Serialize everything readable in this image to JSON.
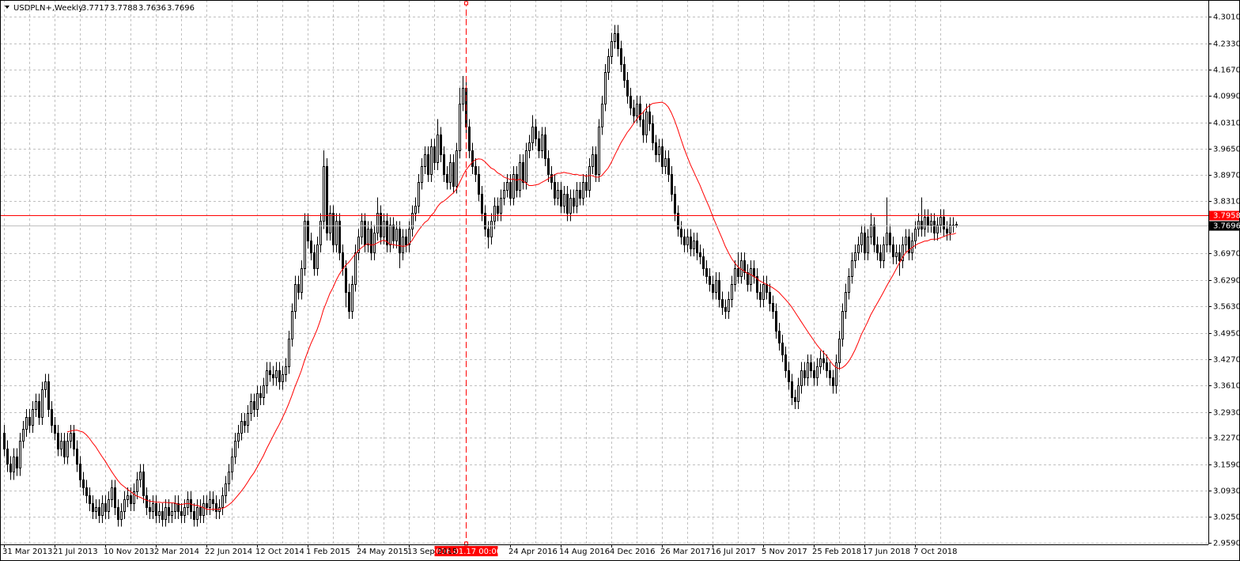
{
  "chart_data": {
    "type": "candlestick",
    "title": "USDPLN+,Weekly",
    "categories": [
      "31 Mar 2013",
      null,
      null,
      null,
      null,
      null,
      null,
      null,
      null,
      null,
      null,
      null,
      null,
      null,
      null,
      null,
      "21 Jul 2013",
      null,
      null,
      null,
      null,
      null,
      null,
      null,
      null,
      null,
      null,
      null,
      null,
      null,
      null,
      null,
      "10 Nov 2013",
      null,
      null,
      null,
      null,
      null,
      null,
      null,
      null,
      null,
      null,
      null,
      null,
      null,
      null,
      null,
      "2 Mar 2014",
      null,
      null,
      null,
      null,
      null,
      null,
      null,
      null,
      null,
      null,
      null,
      null,
      null,
      null,
      null,
      "22 Jun 2014",
      null,
      null,
      null,
      null,
      null,
      null,
      null,
      null,
      null,
      null,
      null,
      null,
      null,
      null,
      null,
      "12 Oct 2014",
      null,
      null,
      null,
      null,
      null,
      null,
      null,
      null,
      null,
      null,
      null,
      null,
      null,
      null,
      null,
      "1 Feb 2015",
      null,
      null,
      null,
      null,
      null,
      null,
      null,
      null,
      null,
      null,
      null,
      null,
      null,
      null,
      null,
      "24 May 2015",
      null,
      null,
      null,
      null,
      null,
      null,
      null,
      null,
      null,
      null,
      null,
      null,
      null,
      null,
      null,
      "13 Sep 2015",
      null,
      null,
      null,
      null,
      null,
      null,
      null,
      null,
      null,
      null,
      null,
      null,
      null,
      null,
      null,
      null,
      null,
      "2016.01.17 00:00",
      null,
      null,
      null,
      null,
      null,
      null,
      null,
      null,
      null,
      null,
      null,
      null,
      null,
      "24 Apr 2016",
      null,
      null,
      null,
      null,
      null,
      null,
      null,
      null,
      null,
      null,
      null,
      null,
      null,
      null,
      null,
      "14 Aug 2016",
      null,
      null,
      null,
      null,
      null,
      null,
      null,
      null,
      null,
      null,
      null,
      null,
      null,
      null,
      null,
      "4 Dec 2016",
      null,
      null,
      null,
      null,
      null,
      null,
      null,
      null,
      null,
      null,
      null,
      null,
      null,
      null,
      null,
      "26 Mar 2017",
      null,
      null,
      null,
      null,
      null,
      null,
      null,
      null,
      null,
      null,
      null,
      null,
      null,
      null,
      null,
      "16 Jul 2017",
      null,
      null,
      null,
      null,
      null,
      null,
      null,
      null,
      null,
      null,
      null,
      null,
      null,
      null,
      null,
      "5 Nov 2017",
      null,
      null,
      null,
      null,
      null,
      null,
      null,
      null,
      null,
      null,
      null,
      null,
      null,
      null,
      null,
      "25 Feb 2018",
      null,
      null,
      null,
      null,
      null,
      null,
      null,
      null,
      null,
      null,
      null,
      null,
      null,
      null,
      null,
      "17 Jun 2018",
      null,
      null,
      null,
      null,
      null,
      null,
      null,
      null,
      null,
      null,
      null,
      null,
      null,
      null,
      null,
      "7 Oct 2018",
      null,
      null,
      null,
      null,
      null,
      null,
      null,
      null,
      null,
      null,
      null,
      null,
      null
    ],
    "crosshair": "2016.01.17 00:00",
    "open": [
      3.24,
      3.2,
      3.16,
      3.14,
      3.18,
      3.15,
      3.22,
      3.25,
      3.28,
      3.26,
      3.3,
      3.32,
      3.28,
      3.35,
      3.37,
      3.3,
      3.26,
      3.24,
      3.2,
      3.22,
      3.18,
      3.22,
      3.24,
      3.2,
      3.16,
      3.12,
      3.1,
      3.08,
      3.06,
      3.04,
      3.05,
      3.03,
      3.06,
      3.04,
      3.07,
      3.1,
      3.05,
      3.02,
      3.04,
      3.07,
      3.08,
      3.06,
      3.09,
      3.12,
      3.14,
      3.08,
      3.05,
      3.04,
      3.06,
      3.03,
      3.04,
      3.02,
      3.05,
      3.03,
      3.04,
      3.06,
      3.04,
      3.03,
      3.05,
      3.07,
      3.04,
      3.02,
      3.05,
      3.03,
      3.06,
      3.05,
      3.07,
      3.06,
      3.04,
      3.05,
      3.08,
      3.11,
      3.14,
      3.18,
      3.22,
      3.24,
      3.27,
      3.26,
      3.29,
      3.32,
      3.3,
      3.34,
      3.33,
      3.36,
      3.4,
      3.39,
      3.38,
      3.4,
      3.37,
      3.39,
      3.41,
      3.48,
      3.55,
      3.62,
      3.6,
      3.66,
      3.78,
      3.73,
      3.7,
      3.66,
      3.72,
      3.78,
      3.92,
      3.75,
      3.8,
      3.72,
      3.78,
      3.7,
      3.66,
      3.6,
      3.55,
      3.62,
      3.7,
      3.74,
      3.78,
      3.72,
      3.76,
      3.7,
      3.75,
      3.8,
      3.74,
      3.78,
      3.72,
      3.77,
      3.73,
      3.76,
      3.7,
      3.74,
      3.72,
      3.76,
      3.8,
      3.82,
      3.88,
      3.92,
      3.95,
      3.9,
      3.97,
      3.93,
      4.0,
      3.95,
      3.9,
      3.88,
      3.93,
      3.87,
      3.96,
      4.08,
      4.12,
      4.02,
      3.96,
      3.92,
      3.9,
      3.85,
      3.8,
      3.76,
      3.74,
      3.78,
      3.82,
      3.8,
      3.84,
      3.86,
      3.88,
      3.84,
      3.9,
      3.86,
      3.93,
      3.88,
      3.96,
      3.98,
      4.02,
      3.99,
      3.96,
      4.0,
      3.94,
      3.9,
      3.88,
      3.84,
      3.86,
      3.82,
      3.85,
      3.8,
      3.84,
      3.82,
      3.86,
      3.84,
      3.88,
      3.86,
      3.92,
      3.95,
      3.9,
      4.02,
      4.08,
      4.16,
      4.2,
      4.24,
      4.26,
      4.22,
      4.18,
      4.14,
      4.1,
      4.07,
      4.05,
      4.08,
      4.04,
      4.0,
      4.06,
      4.03,
      3.98,
      3.95,
      3.97,
      3.92,
      3.94,
      3.9,
      3.85,
      3.8,
      3.76,
      3.74,
      3.72,
      3.74,
      3.71,
      3.73,
      3.7,
      3.69,
      3.66,
      3.64,
      3.62,
      3.6,
      3.63,
      3.58,
      3.56,
      3.55,
      3.58,
      3.62,
      3.66,
      3.64,
      3.68,
      3.65,
      3.62,
      3.66,
      3.64,
      3.6,
      3.58,
      3.62,
      3.6,
      3.57,
      3.55,
      3.5,
      3.47,
      3.44,
      3.4,
      3.37,
      3.33,
      3.32,
      3.36,
      3.4,
      3.38,
      3.42,
      3.4,
      3.38,
      3.41,
      3.43,
      3.42,
      3.4,
      3.38,
      3.36,
      3.42,
      3.48,
      3.55,
      3.6,
      3.64,
      3.68,
      3.7,
      3.72,
      3.75,
      3.7,
      3.74,
      3.77,
      3.72,
      3.7,
      3.68,
      3.72,
      3.75,
      3.72,
      3.69,
      3.7,
      3.68,
      3.72,
      3.74,
      3.7,
      3.73,
      3.76,
      3.78,
      3.76,
      3.79,
      3.77,
      3.78,
      3.75,
      3.77,
      3.79,
      3.76,
      3.75,
      3.77,
      3.7717
    ],
    "high": [
      3.26,
      3.22,
      3.18,
      3.2,
      3.2,
      3.24,
      3.27,
      3.3,
      3.3,
      3.32,
      3.34,
      3.34,
      3.37,
      3.39,
      3.39,
      3.32,
      3.28,
      3.26,
      3.24,
      3.24,
      3.24,
      3.26,
      3.26,
      3.22,
      3.18,
      3.14,
      3.12,
      3.1,
      3.08,
      3.07,
      3.07,
      3.08,
      3.08,
      3.09,
      3.12,
      3.12,
      3.07,
      3.06,
      3.09,
      3.1,
      3.1,
      3.11,
      3.14,
      3.16,
      3.16,
      3.1,
      3.07,
      3.08,
      3.08,
      3.06,
      3.06,
      3.07,
      3.07,
      3.06,
      3.08,
      3.08,
      3.06,
      3.07,
      3.09,
      3.09,
      3.06,
      3.07,
      3.07,
      3.08,
      3.08,
      3.09,
      3.09,
      3.08,
      3.07,
      3.1,
      3.13,
      3.16,
      3.2,
      3.24,
      3.26,
      3.29,
      3.29,
      3.31,
      3.34,
      3.34,
      3.36,
      3.36,
      3.38,
      3.42,
      3.42,
      3.41,
      3.42,
      3.42,
      3.41,
      3.43,
      3.5,
      3.57,
      3.64,
      3.64,
      3.68,
      3.8,
      3.8,
      3.75,
      3.72,
      3.74,
      3.8,
      3.96,
      3.94,
      3.82,
      3.82,
      3.8,
      3.8,
      3.72,
      3.68,
      3.62,
      3.64,
      3.72,
      3.76,
      3.8,
      3.8,
      3.78,
      3.78,
      3.77,
      3.84,
      3.82,
      3.8,
      3.8,
      3.79,
      3.79,
      3.78,
      3.78,
      3.76,
      3.76,
      3.78,
      3.82,
      3.84,
      3.9,
      3.94,
      3.97,
      3.97,
      3.99,
      3.99,
      4.04,
      4.02,
      3.97,
      3.92,
      3.95,
      3.95,
      3.98,
      4.12,
      4.15,
      4.14,
      4.04,
      3.98,
      3.94,
      3.92,
      3.87,
      3.82,
      3.78,
      3.8,
      3.84,
      3.84,
      3.86,
      3.88,
      3.9,
      3.9,
      3.92,
      3.92,
      3.95,
      3.95,
      3.98,
      4.0,
      4.05,
      4.04,
      4.01,
      4.02,
      4.02,
      3.96,
      3.92,
      3.9,
      3.88,
      3.88,
      3.87,
      3.87,
      3.86,
      3.86,
      3.88,
      3.88,
      3.9,
      3.9,
      3.94,
      3.97,
      3.97,
      4.04,
      4.1,
      4.18,
      4.22,
      4.26,
      4.28,
      4.28,
      4.24,
      4.2,
      4.16,
      4.12,
      4.09,
      4.1,
      4.1,
      4.06,
      4.08,
      4.08,
      4.05,
      4.0,
      3.99,
      3.99,
      3.96,
      3.96,
      3.92,
      3.87,
      3.82,
      3.78,
      3.76,
      3.76,
      3.76,
      3.75,
      3.75,
      3.72,
      3.71,
      3.68,
      3.66,
      3.64,
      3.65,
      3.65,
      3.6,
      3.58,
      3.6,
      3.64,
      3.68,
      3.7,
      3.7,
      3.7,
      3.67,
      3.68,
      3.68,
      3.66,
      3.62,
      3.64,
      3.64,
      3.62,
      3.59,
      3.57,
      3.52,
      3.49,
      3.46,
      3.42,
      3.39,
      3.35,
      3.38,
      3.42,
      3.42,
      3.44,
      3.44,
      3.42,
      3.43,
      3.45,
      3.45,
      3.44,
      3.42,
      3.4,
      3.44,
      3.5,
      3.57,
      3.62,
      3.66,
      3.7,
      3.72,
      3.74,
      3.77,
      3.77,
      3.76,
      3.8,
      3.79,
      3.74,
      3.72,
      3.74,
      3.84,
      3.77,
      3.74,
      3.72,
      3.72,
      3.74,
      3.76,
      3.76,
      3.75,
      3.78,
      3.8,
      3.84,
      3.81,
      3.81,
      3.8,
      3.8,
      3.79,
      3.81,
      3.81,
      3.78,
      3.79,
      3.79,
      3.7788
    ],
    "low": [
      3.18,
      3.14,
      3.12,
      3.12,
      3.13,
      3.13,
      3.2,
      3.23,
      3.24,
      3.24,
      3.28,
      3.26,
      3.26,
      3.33,
      3.28,
      3.24,
      3.22,
      3.18,
      3.18,
      3.16,
      3.16,
      3.2,
      3.18,
      3.14,
      3.1,
      3.08,
      3.06,
      3.04,
      3.02,
      3.02,
      3.01,
      3.01,
      3.02,
      3.02,
      3.05,
      3.03,
      3.0,
      3.0,
      3.02,
      3.05,
      3.04,
      3.04,
      3.07,
      3.1,
      3.06,
      3.03,
      3.02,
      3.02,
      3.01,
      3.01,
      3.0,
      3.0,
      3.01,
      3.01,
      3.02,
      3.02,
      3.01,
      3.01,
      3.03,
      3.02,
      3.0,
      3.0,
      3.01,
      3.01,
      3.03,
      3.03,
      3.04,
      3.02,
      3.02,
      3.03,
      3.06,
      3.09,
      3.12,
      3.16,
      3.2,
      3.22,
      3.24,
      3.24,
      3.27,
      3.28,
      3.28,
      3.31,
      3.31,
      3.34,
      3.37,
      3.36,
      3.36,
      3.35,
      3.35,
      3.37,
      3.39,
      3.46,
      3.53,
      3.58,
      3.58,
      3.64,
      3.71,
      3.68,
      3.64,
      3.64,
      3.7,
      3.76,
      3.73,
      3.73,
      3.7,
      3.7,
      3.68,
      3.64,
      3.56,
      3.53,
      3.53,
      3.6,
      3.68,
      3.72,
      3.7,
      3.7,
      3.68,
      3.68,
      3.73,
      3.72,
      3.72,
      3.7,
      3.7,
      3.71,
      3.71,
      3.66,
      3.68,
      3.7,
      3.7,
      3.74,
      3.78,
      3.8,
      3.86,
      3.9,
      3.88,
      3.88,
      3.91,
      3.91,
      3.93,
      3.88,
      3.86,
      3.86,
      3.85,
      3.85,
      3.94,
      4.06,
      4.0,
      3.94,
      3.9,
      3.88,
      3.83,
      3.78,
      3.74,
      3.71,
      3.72,
      3.76,
      3.78,
      3.78,
      3.82,
      3.84,
      3.82,
      3.82,
      3.84,
      3.84,
      3.86,
      3.86,
      3.94,
      3.96,
      3.97,
      3.94,
      3.94,
      3.92,
      3.88,
      3.86,
      3.82,
      3.82,
      3.8,
      3.8,
      3.78,
      3.78,
      3.8,
      3.8,
      3.82,
      3.82,
      3.84,
      3.84,
      3.9,
      3.88,
      3.88,
      4.0,
      4.06,
      4.14,
      4.18,
      4.22,
      4.2,
      4.16,
      4.12,
      4.08,
      4.05,
      4.03,
      4.03,
      4.02,
      3.98,
      3.98,
      4.01,
      3.96,
      3.93,
      3.93,
      3.9,
      3.9,
      3.88,
      3.83,
      3.78,
      3.74,
      3.72,
      3.7,
      3.7,
      3.69,
      3.69,
      3.68,
      3.67,
      3.64,
      3.62,
      3.6,
      3.58,
      3.58,
      3.56,
      3.54,
      3.53,
      3.53,
      3.56,
      3.6,
      3.62,
      3.62,
      3.63,
      3.6,
      3.6,
      3.62,
      3.58,
      3.56,
      3.56,
      3.58,
      3.55,
      3.53,
      3.48,
      3.45,
      3.42,
      3.38,
      3.35,
      3.31,
      3.3,
      3.3,
      3.34,
      3.36,
      3.36,
      3.38,
      3.36,
      3.36,
      3.39,
      3.4,
      3.38,
      3.36,
      3.34,
      3.34,
      3.4,
      3.46,
      3.53,
      3.58,
      3.62,
      3.66,
      3.68,
      3.7,
      3.68,
      3.68,
      3.72,
      3.7,
      3.68,
      3.66,
      3.66,
      3.7,
      3.7,
      3.67,
      3.67,
      3.64,
      3.66,
      3.7,
      3.68,
      3.68,
      3.71,
      3.74,
      3.74,
      3.74,
      3.75,
      3.75,
      3.73,
      3.73,
      3.75,
      3.74,
      3.73,
      3.73,
      3.75,
      3.7636
    ],
    "close": [
      3.2,
      3.16,
      3.14,
      3.18,
      3.15,
      3.22,
      3.25,
      3.28,
      3.26,
      3.3,
      3.32,
      3.28,
      3.35,
      3.37,
      3.3,
      3.26,
      3.24,
      3.2,
      3.22,
      3.18,
      3.22,
      3.24,
      3.2,
      3.16,
      3.12,
      3.1,
      3.08,
      3.06,
      3.04,
      3.05,
      3.03,
      3.06,
      3.04,
      3.07,
      3.1,
      3.05,
      3.02,
      3.04,
      3.07,
      3.08,
      3.06,
      3.09,
      3.12,
      3.14,
      3.08,
      3.05,
      3.04,
      3.06,
      3.03,
      3.04,
      3.02,
      3.05,
      3.03,
      3.04,
      3.06,
      3.04,
      3.03,
      3.05,
      3.07,
      3.04,
      3.02,
      3.05,
      3.03,
      3.06,
      3.05,
      3.07,
      3.06,
      3.04,
      3.05,
      3.08,
      3.11,
      3.14,
      3.18,
      3.22,
      3.24,
      3.27,
      3.26,
      3.29,
      3.32,
      3.3,
      3.34,
      3.33,
      3.36,
      3.4,
      3.39,
      3.38,
      3.4,
      3.37,
      3.39,
      3.41,
      3.48,
      3.55,
      3.62,
      3.6,
      3.66,
      3.78,
      3.73,
      3.7,
      3.66,
      3.72,
      3.78,
      3.92,
      3.75,
      3.8,
      3.72,
      3.78,
      3.7,
      3.66,
      3.6,
      3.55,
      3.62,
      3.7,
      3.74,
      3.78,
      3.72,
      3.76,
      3.7,
      3.75,
      3.8,
      3.74,
      3.78,
      3.72,
      3.77,
      3.73,
      3.76,
      3.7,
      3.74,
      3.72,
      3.76,
      3.8,
      3.82,
      3.88,
      3.92,
      3.95,
      3.9,
      3.97,
      3.93,
      4.0,
      3.95,
      3.9,
      3.88,
      3.93,
      3.87,
      3.96,
      4.08,
      4.12,
      4.02,
      3.96,
      3.92,
      3.9,
      3.85,
      3.8,
      3.76,
      3.74,
      3.78,
      3.82,
      3.8,
      3.84,
      3.86,
      3.88,
      3.84,
      3.9,
      3.86,
      3.93,
      3.88,
      3.96,
      3.98,
      4.02,
      3.99,
      3.96,
      4.0,
      3.94,
      3.9,
      3.88,
      3.84,
      3.86,
      3.82,
      3.85,
      3.8,
      3.84,
      3.82,
      3.86,
      3.84,
      3.88,
      3.86,
      3.92,
      3.95,
      3.9,
      4.02,
      4.08,
      4.16,
      4.2,
      4.24,
      4.26,
      4.22,
      4.18,
      4.14,
      4.1,
      4.07,
      4.05,
      4.08,
      4.04,
      4.0,
      4.06,
      4.03,
      3.98,
      3.95,
      3.97,
      3.92,
      3.94,
      3.9,
      3.85,
      3.8,
      3.76,
      3.74,
      3.72,
      3.74,
      3.71,
      3.73,
      3.7,
      3.69,
      3.66,
      3.64,
      3.62,
      3.6,
      3.63,
      3.58,
      3.56,
      3.55,
      3.58,
      3.62,
      3.66,
      3.64,
      3.68,
      3.65,
      3.62,
      3.66,
      3.64,
      3.6,
      3.58,
      3.62,
      3.6,
      3.57,
      3.55,
      3.5,
      3.47,
      3.44,
      3.4,
      3.37,
      3.33,
      3.32,
      3.36,
      3.4,
      3.38,
      3.42,
      3.4,
      3.38,
      3.41,
      3.43,
      3.42,
      3.4,
      3.38,
      3.36,
      3.42,
      3.48,
      3.55,
      3.6,
      3.64,
      3.68,
      3.7,
      3.72,
      3.75,
      3.7,
      3.74,
      3.77,
      3.72,
      3.7,
      3.68,
      3.72,
      3.75,
      3.72,
      3.69,
      3.7,
      3.68,
      3.72,
      3.74,
      3.7,
      3.73,
      3.76,
      3.78,
      3.76,
      3.79,
      3.77,
      3.78,
      3.75,
      3.77,
      3.79,
      3.76,
      3.75,
      3.77,
      3.77,
      3.7696
    ],
    "up_color": "#ffffff",
    "down_color": "#000000",
    "ma_color": "#ff0000",
    "hline": {
      "value": 3.7958,
      "label": "3.7958",
      "color": "#ff0000"
    },
    "ylim": [
      2.955,
      4.344
    ],
    "yticks": [
      {
        "value": 4.301,
        "label": "4.3010"
      },
      {
        "value": 4.233,
        "label": "4.2330"
      },
      {
        "value": 4.167,
        "label": "4.1670"
      },
      {
        "value": 4.099,
        "label": "4.0990"
      },
      {
        "value": 4.031,
        "label": "4.0310"
      },
      {
        "value": 3.965,
        "label": "3.9650"
      },
      {
        "value": 3.897,
        "label": "3.8970"
      },
      {
        "value": 3.831,
        "label": "3.8310"
      },
      {
        "value": 3.697,
        "label": "3.6970"
      },
      {
        "value": 3.629,
        "label": "3.6290"
      },
      {
        "value": 3.563,
        "label": "3.5630"
      },
      {
        "value": 3.495,
        "label": "3.4950"
      },
      {
        "value": 3.427,
        "label": "3.4270"
      },
      {
        "value": 3.361,
        "label": "3.3610"
      },
      {
        "value": 3.293,
        "label": "3.2930"
      },
      {
        "value": 3.227,
        "label": "3.2270"
      },
      {
        "value": 3.159,
        "label": "3.1590"
      },
      {
        "value": 3.093,
        "label": "3.0930"
      },
      {
        "value": 3.025,
        "label": "3.0250"
      },
      {
        "value": 2.959,
        "label": "2.9590"
      }
    ],
    "grid": true
  }
}
